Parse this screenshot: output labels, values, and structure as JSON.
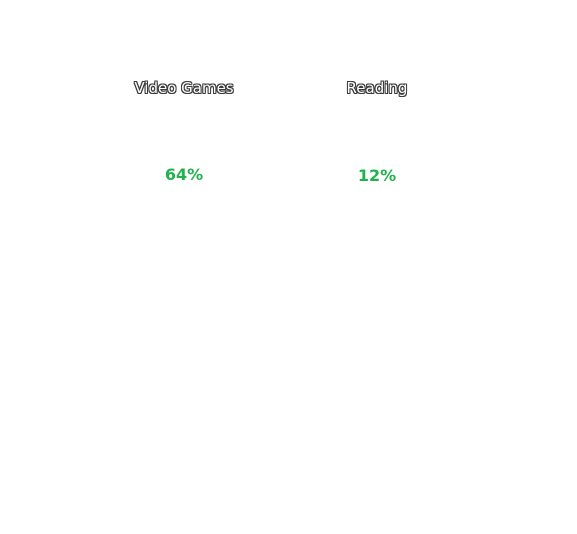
{
  "stats": [
    {
      "label": "Video Games",
      "value": "64%"
    },
    {
      "label": "Reading",
      "value": "12%"
    }
  ],
  "colors": {
    "value_green": "#22b14c",
    "label_outline": "#3a3a3a",
    "background": "#ffffff"
  }
}
